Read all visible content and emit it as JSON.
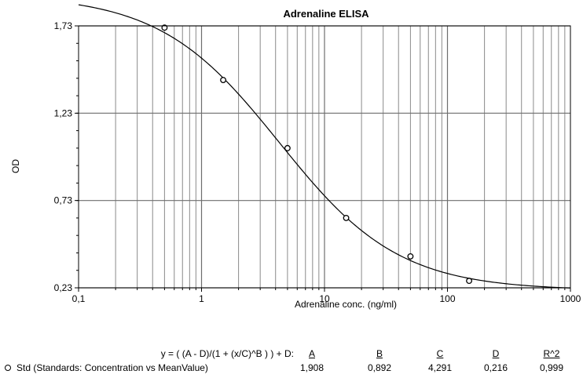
{
  "chart_data": {
    "type": "scatter",
    "title": "Adrenaline ELISA",
    "xlabel": "Adrenaline conc. (ng/ml)",
    "ylabel": "OD",
    "xscale": "log",
    "xlim": [
      0.1,
      1000
    ],
    "ylim": [
      0.23,
      1.73
    ],
    "xticks": [
      "0,1",
      "1",
      "10",
      "100",
      "1000"
    ],
    "yticks": [
      "0,23",
      "0,73",
      "1,23",
      "1,73"
    ],
    "grid": true,
    "series": [
      {
        "name": "Std (Standards: Concentration vs MeanValue)",
        "marker": "open-circle",
        "x": [
          0.5,
          1.5,
          5,
          15,
          50,
          150
        ],
        "y": [
          1.72,
          1.42,
          1.03,
          0.63,
          0.41,
          0.27
        ]
      }
    ],
    "fit": {
      "model": "4PL",
      "equation": "y = ( (A - D)/(1 + (x/C)^B ) ) + D:",
      "A": 1.908,
      "B": 0.892,
      "C": 4.291,
      "D": 0.216,
      "R2": 0.999
    }
  },
  "legend": {
    "equation": "y = ( (A - D)/(1 + (x/C)^B ) ) + D:",
    "headers": [
      "A",
      "B",
      "C",
      "D",
      "R^2"
    ],
    "series_label": "Std (Standards: Concentration vs MeanValue)",
    "values": [
      "1,908",
      "0,892",
      "4,291",
      "0,216",
      "0,999"
    ]
  }
}
